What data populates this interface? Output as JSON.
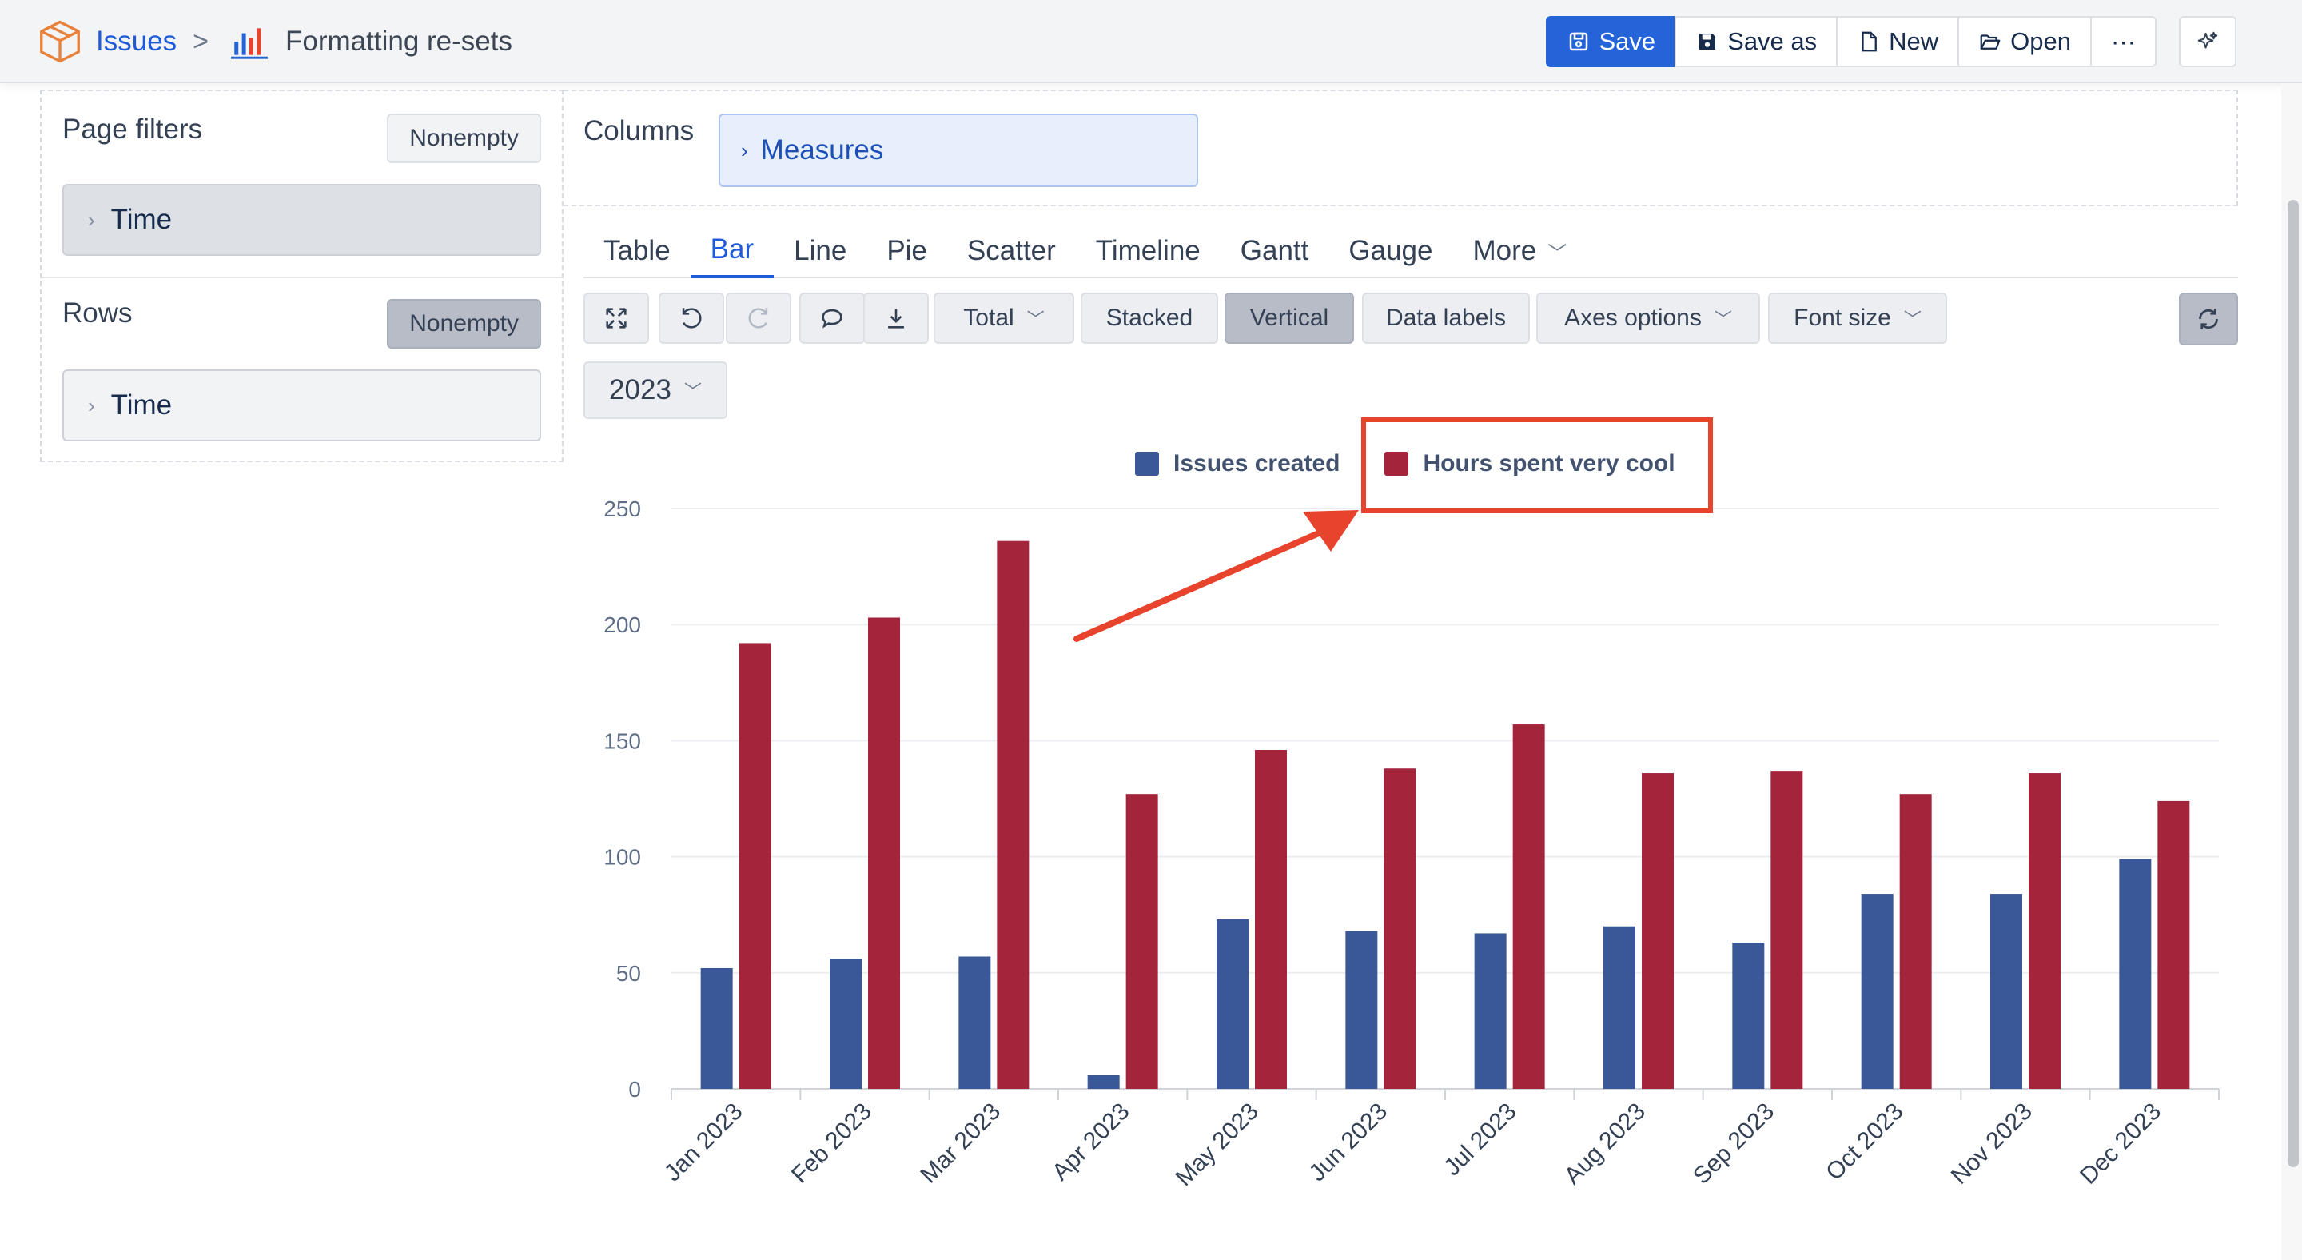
{
  "breadcrumb": {
    "root": "Issues",
    "separator": ">",
    "title": "Formatting re-sets"
  },
  "toolbar": {
    "save": "Save",
    "save_as": "Save as",
    "new": "New",
    "open": "Open",
    "more": "···"
  },
  "left_panel": {
    "page_filters": {
      "title": "Page filters",
      "nonempty": "Nonempty",
      "dimension": "Time"
    },
    "rows": {
      "title": "Rows",
      "nonempty": "Nonempty",
      "dimension": "Time"
    }
  },
  "columns": {
    "title": "Columns",
    "measures": "Measures"
  },
  "tabs": [
    {
      "label": "Table"
    },
    {
      "label": "Bar",
      "active": true
    },
    {
      "label": "Line"
    },
    {
      "label": "Pie"
    },
    {
      "label": "Scatter"
    },
    {
      "label": "Timeline"
    },
    {
      "label": "Gantt"
    },
    {
      "label": "Gauge"
    },
    {
      "label": "More",
      "dropdown": true
    }
  ],
  "chart_toolbar": {
    "total": "Total",
    "stacked": "Stacked",
    "vertical": "Vertical",
    "data_labels": "Data labels",
    "axes_options": "Axes options",
    "font_size": "Font size",
    "year": "2023"
  },
  "colors": {
    "accent": "#2563d9",
    "series_1": "#3a5898",
    "series_2": "#a3243b",
    "highlight": "#e8432c"
  },
  "chart_data": {
    "type": "bar",
    "categories": [
      "Jan 2023",
      "Feb 2023",
      "Mar 2023",
      "Apr 2023",
      "May 2023",
      "Jun 2023",
      "Jul 2023",
      "Aug 2023",
      "Sep 2023",
      "Oct 2023",
      "Nov 2023",
      "Dec 2023"
    ],
    "series": [
      {
        "name": "Issues created",
        "color": "#3a5898",
        "values": [
          52,
          56,
          57,
          6,
          73,
          68,
          67,
          70,
          63,
          84,
          84,
          99
        ]
      },
      {
        "name": "Hours spent very cool",
        "color": "#a3243b",
        "values": [
          192,
          203,
          236,
          127,
          146,
          138,
          157,
          136,
          137,
          127,
          136,
          124
        ]
      }
    ],
    "ylim": [
      0,
      250
    ],
    "yticks": [
      0,
      50,
      100,
      150,
      200,
      250
    ],
    "grid": true,
    "legend": "top-center",
    "annotation": "red box around legend item 'Hours spent very cool' with arrow pointing to it"
  }
}
